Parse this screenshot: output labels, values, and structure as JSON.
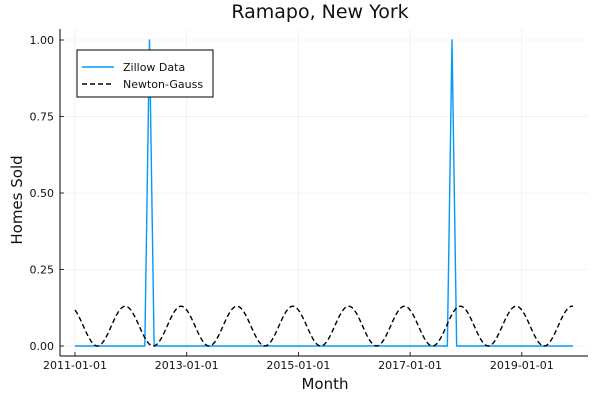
{
  "chart_data": {
    "type": "line",
    "title": "Ramapo, New York",
    "xlabel": "Month",
    "ylabel": "Homes Sold",
    "xlim": [
      "2011-01-01",
      "2019-12-01"
    ],
    "ylim": [
      0,
      1
    ],
    "x_ticks": [
      "2011-01-01",
      "2013-01-01",
      "2015-01-01",
      "2017-01-01",
      "2019-01-01"
    ],
    "y_ticks": [
      "0.00",
      "0.25",
      "0.50",
      "0.75",
      "1.00"
    ],
    "grid": true,
    "legend_position": "top-left",
    "series": [
      {
        "name": "Zillow Data",
        "style": "solid",
        "color": "#009af9",
        "points": [
          {
            "x": "2011-01-01",
            "y": 0
          },
          {
            "x": "2012-04-01",
            "y": 0
          },
          {
            "x": "2012-05-01",
            "y": 1
          },
          {
            "x": "2012-06-01",
            "y": 0
          },
          {
            "x": "2017-09-01",
            "y": 0
          },
          {
            "x": "2017-10-01",
            "y": 1
          },
          {
            "x": "2017-11-01",
            "y": 0
          },
          {
            "x": "2019-12-01",
            "y": 0
          }
        ]
      },
      {
        "name": "Newton-Gauss",
        "style": "dashed",
        "color": "#000000",
        "amplitude": 0.065,
        "offset": 0.065,
        "period_months": 12,
        "peak_month": 10.8,
        "x_start": "2011-01-01",
        "x_end": "2019-12-01"
      }
    ]
  }
}
